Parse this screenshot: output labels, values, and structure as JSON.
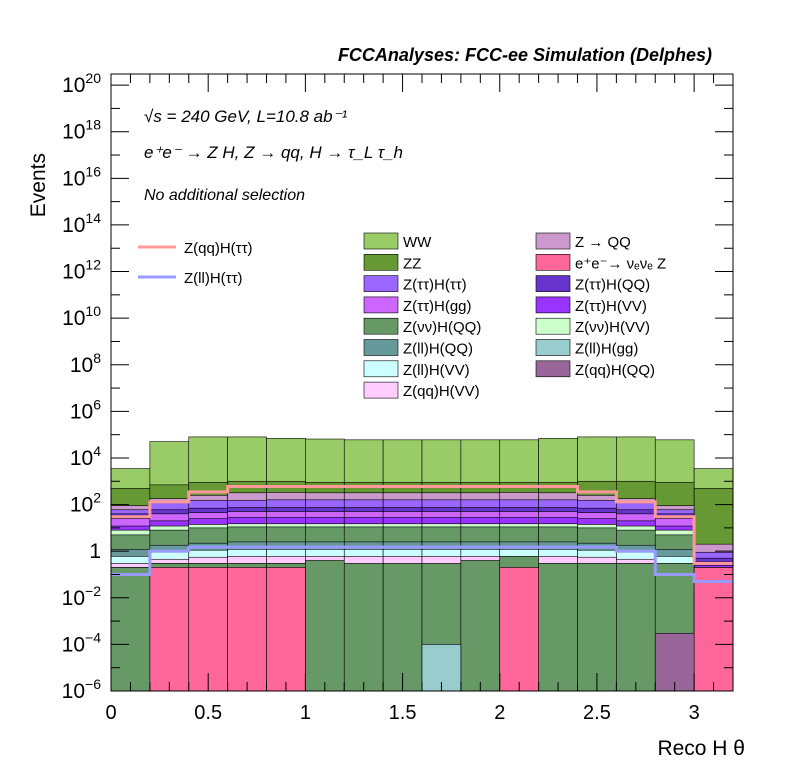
{
  "chart_data": {
    "type": "histogram-stack",
    "title": "FCCAnalyses: FCC-ee Simulation (Delphes)",
    "xlabel": "Reco H θ",
    "ylabel": "Events",
    "xlim": [
      0,
      3.2
    ],
    "ylim": [
      1e-06,
      3e+20
    ],
    "log_y": true,
    "bin_edges": [
      0,
      0.2,
      0.4,
      0.6,
      0.8,
      1.0,
      1.2,
      1.4,
      1.6,
      1.8,
      2.0,
      2.2,
      2.4,
      2.6,
      2.8,
      3.0,
      3.2
    ],
    "x_ticks": [
      {
        "value": 0,
        "label": "0"
      },
      {
        "value": 0.5,
        "label": "0.5"
      },
      {
        "value": 1,
        "label": "1"
      },
      {
        "value": 1.5,
        "label": "1.5"
      },
      {
        "value": 2,
        "label": "2"
      },
      {
        "value": 2.5,
        "label": "2.5"
      },
      {
        "value": 3,
        "label": "3"
      }
    ],
    "y_ticks": [
      {
        "value": 1e-06,
        "base": "10",
        "exp": "−6"
      },
      {
        "value": 0.0001,
        "base": "10",
        "exp": "−4"
      },
      {
        "value": 0.01,
        "base": "10",
        "exp": "−2"
      },
      {
        "value": 1,
        "base": "1",
        "exp": ""
      },
      {
        "value": 100.0,
        "base": "10",
        "exp": "2"
      },
      {
        "value": 10000.0,
        "base": "10",
        "exp": "4"
      },
      {
        "value": 1000000.0,
        "base": "10",
        "exp": "6"
      },
      {
        "value": 100000000.0,
        "base": "10",
        "exp": "8"
      },
      {
        "value": 10000000000.0,
        "base": "10",
        "exp": "10"
      },
      {
        "value": 1000000000000.0,
        "base": "10",
        "exp": "12"
      },
      {
        "value": 100000000000000.0,
        "base": "10",
        "exp": "14"
      },
      {
        "value": 1e+16,
        "base": "10",
        "exp": "16"
      },
      {
        "value": 1e+18,
        "base": "10",
        "exp": "18"
      },
      {
        "value": 1e+20,
        "base": "10",
        "exp": "20"
      }
    ],
    "annotations": [
      {
        "text": "√s = 240 GeV, L=10.8 ab⁻¹"
      },
      {
        "text": "e⁺e⁻ → Z H, Z → qq, H → τ_L τ_h"
      },
      {
        "text": "No additional selection"
      }
    ],
    "stack_tops": [
      {
        "name": "WW",
        "color": "#99cc66",
        "values": [
          3500,
          50000,
          80000,
          80000,
          70000,
          65000,
          60000,
          60000,
          60000,
          60000,
          60000,
          70000,
          80000,
          80000,
          60000,
          3500
        ]
      },
      {
        "name": "ZZ",
        "color": "#669933",
        "values": [
          500,
          700,
          900,
          1000,
          1000,
          900,
          900,
          900,
          900,
          900,
          900,
          900,
          1000,
          1000,
          900,
          500
        ]
      },
      {
        "name": "Z → QQ",
        "color": "#cc99cc",
        "values": [
          90,
          180,
          250,
          320,
          330,
          320,
          320,
          320,
          320,
          320,
          330,
          320,
          250,
          180,
          90,
          2
        ]
      },
      {
        "name": "Z(ττ)H(ττ)",
        "color": "#9966ff",
        "values": [
          60,
          120,
          150,
          150,
          160,
          160,
          160,
          160,
          160,
          160,
          160,
          160,
          150,
          120,
          60,
          0.9
        ]
      },
      {
        "name": "Z(ττ)H(QQ)",
        "color": "#6633cc",
        "values": [
          40,
          60,
          70,
          75,
          75,
          75,
          75,
          75,
          75,
          75,
          75,
          75,
          70,
          60,
          40,
          0.5
        ]
      },
      {
        "name": "Z(ττ)H(gg)",
        "color": "#cc66ff",
        "values": [
          25,
          40,
          45,
          50,
          50,
          50,
          50,
          50,
          50,
          50,
          50,
          50,
          45,
          40,
          25,
          0.35
        ]
      },
      {
        "name": "Z(ττ)H(VV)",
        "color": "#9933ff",
        "values": [
          12,
          20,
          25,
          28,
          28,
          28,
          28,
          28,
          28,
          28,
          28,
          28,
          25,
          20,
          12,
          0.25
        ]
      },
      {
        "name": "Z(νν)H(VV)",
        "color": "#ccffcc",
        "values": [
          8,
          12,
          14,
          15,
          15,
          15,
          15,
          15,
          15,
          15,
          15,
          15,
          14,
          12,
          8,
          0.2
        ]
      },
      {
        "name": "Z(νν)H(QQ)",
        "color": "#669966",
        "values": [
          5,
          8,
          10,
          11,
          11,
          11,
          11,
          11,
          11,
          11,
          11,
          11,
          10,
          8,
          5,
          0.15
        ]
      },
      {
        "name": "Z(ll)H(QQ)",
        "color": "#669999",
        "values": [
          1.2,
          1.8,
          2.2,
          2.5,
          2.5,
          2.5,
          2.5,
          2.5,
          2.5,
          2.5,
          2.5,
          2.5,
          2.2,
          1.8,
          1.2,
          0.1
        ]
      },
      {
        "name": "Z(ll)H(VV)",
        "color": "#ccffff",
        "values": [
          0.6,
          0.9,
          1.1,
          1.2,
          1.2,
          1.2,
          1.2,
          1.2,
          1.2,
          1.2,
          1.2,
          1.2,
          1.1,
          0.9,
          0.6,
          0.06
        ]
      },
      {
        "name": "Z(qq)H(VV)",
        "color": "#ffccff",
        "values": [
          0.3,
          0.45,
          0.55,
          0.6,
          0.6,
          0.6,
          0.6,
          0.6,
          0.6,
          0.6,
          0.6,
          0.6,
          0.55,
          0.45,
          0.3,
          0.04
        ]
      },
      {
        "name": "Z(ll)H(gg)",
        "color": "#99cccc",
        "values": [
          0.2,
          0.3,
          0.3,
          0.3,
          0.3,
          0.25,
          0.2,
          0.2,
          0.2,
          0.2,
          0.25,
          0.3,
          0.3,
          0.3,
          0.2,
          0.02
        ]
      },
      {
        "name": "e⁺e⁻→ νₑνₑ Z",
        "color": "#ff6699",
        "values": [
          0.02,
          0.2,
          0.2,
          0.2,
          0.2,
          1e-07,
          1e-07,
          1e-07,
          1e-07,
          1e-07,
          0.2,
          1e-07,
          1e-07,
          1e-07,
          1e-07,
          0.2
        ]
      },
      {
        "name": "Z(qq)H(QQ)",
        "color": "#996699",
        "values": [
          1e-07,
          1e-07,
          1e-07,
          1e-07,
          1e-07,
          1e-07,
          1e-07,
          1e-07,
          1e-07,
          1e-07,
          1e-07,
          1e-07,
          1e-07,
          1e-07,
          0.0003,
          1e-07
        ]
      }
    ],
    "component_values": {
      "Z(νν)H(QQ)": [
        0.2,
        0.3,
        0.3,
        0.3,
        0.3,
        0.4,
        0.3,
        0.3,
        0.3,
        0.4,
        0.6,
        0.3,
        0.3,
        0.3,
        0.3,
        0.02
      ],
      "Z(ll)H(gg)": [
        1e-07,
        1e-07,
        1e-07,
        1e-07,
        1e-07,
        1e-07,
        1e-07,
        1e-07,
        0.0001,
        1e-07,
        1e-07,
        1e-07,
        1e-07,
        1e-07,
        1e-07,
        1e-07
      ],
      "e⁺e⁻→ νₑνₑ Z": [
        1e-07,
        0.2,
        0.2,
        0.2,
        0.2,
        1e-07,
        1e-07,
        1e-07,
        1e-07,
        1e-07,
        0.2,
        1e-07,
        1e-07,
        1e-07,
        1e-07,
        0.2
      ],
      "Z(qq)H(QQ)": [
        1e-07,
        1e-07,
        1e-07,
        1e-07,
        1e-07,
        1e-07,
        1e-07,
        1e-07,
        1e-07,
        1e-07,
        1e-07,
        1e-07,
        1e-07,
        1e-07,
        0.0003,
        1e-07
      ]
    },
    "signal_lines": [
      {
        "name": "Z(qq)H(ττ)",
        "color": "#ff9999",
        "values": [
          30,
          130,
          350,
          600,
          600,
          600,
          600,
          600,
          600,
          600,
          600,
          600,
          350,
          130,
          30,
          0.3
        ]
      },
      {
        "name": "Z(ll)H(ττ)",
        "color": "#9999ff",
        "values": [
          0.1,
          1.0,
          1.5,
          1.5,
          1.5,
          1.5,
          1.5,
          1.5,
          1.5,
          1.5,
          1.5,
          1.5,
          1.5,
          1.0,
          0.1,
          0.05
        ]
      }
    ],
    "legend_columns": [
      [
        "WW",
        "ZZ",
        "Z(ττ)H(ττ)",
        "Z(ττ)H(gg)",
        "Z(νν)H(QQ)",
        "Z(ll)H(QQ)",
        "Z(ll)H(VV)",
        "Z(qq)H(VV)"
      ],
      [
        "Z → QQ",
        "e⁺e⁻→ νₑνₑ Z",
        "Z(ττ)H(QQ)",
        "Z(ττ)H(VV)",
        "Z(νν)H(VV)",
        "Z(ll)H(gg)",
        "Z(qq)H(QQ)"
      ]
    ]
  }
}
